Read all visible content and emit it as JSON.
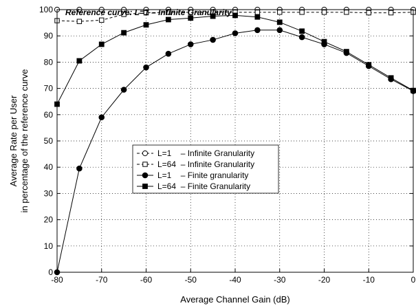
{
  "chart_data": {
    "type": "line",
    "title": "Reference curve: L=1 – Infinite Granularity",
    "xlabel": "Average Channel Gain (dB)",
    "ylabel_lines": [
      "Average Rate per User",
      "in percentage of the reference curve"
    ],
    "xlim": [
      -80,
      0
    ],
    "ylim": [
      0,
      100
    ],
    "xticks": [
      -80,
      -70,
      -60,
      -50,
      -40,
      -30,
      -20,
      -10,
      0
    ],
    "yticks": [
      0,
      10,
      20,
      30,
      40,
      50,
      60,
      70,
      80,
      90,
      100
    ],
    "grid": true,
    "legend_position": "center-left",
    "series": [
      {
        "name": "L=1    – Infinite Granularity",
        "marker": "circle-open",
        "line": "dashed",
        "x": [
          -80,
          -75,
          -70,
          -65,
          -60,
          -55,
          -50,
          -45,
          -40,
          -35,
          -30,
          -25,
          -20,
          -15,
          -10,
          -5,
          0
        ],
        "y": [
          100,
          100,
          100,
          100,
          100,
          100,
          100,
          100,
          100,
          100,
          100,
          100,
          100,
          100,
          100,
          100,
          100
        ]
      },
      {
        "name": "L=64  – Infinite Granularity",
        "marker": "square-open",
        "line": "dashed",
        "x": [
          -80,
          -75,
          -70,
          -65,
          -60,
          -55,
          -50,
          -45,
          -40,
          -35,
          -30,
          -25,
          -20,
          -15,
          -10,
          -5,
          0
        ],
        "y": [
          95.8,
          95.5,
          96,
          98.2,
          98.8,
          99,
          99,
          99,
          99,
          99,
          99,
          99,
          99,
          99,
          98.8,
          98.8,
          99
        ]
      },
      {
        "name": "L=1    – Finite granularity",
        "marker": "circle-filled",
        "line": "solid",
        "x": [
          -80,
          -75,
          -70,
          -65,
          -60,
          -55,
          -50,
          -45,
          -40,
          -35,
          -30,
          -25,
          -20,
          -15,
          -10,
          -5,
          0
        ],
        "y": [
          0,
          39.5,
          59,
          69.5,
          78,
          83.2,
          86.8,
          88.5,
          91,
          92.2,
          92.2,
          89.5,
          86.8,
          83.5,
          78.5,
          73.5,
          69
        ]
      },
      {
        "name": "L=64  – Finite Granularity",
        "marker": "square-filled",
        "line": "solid",
        "x": [
          -80,
          -75,
          -70,
          -65,
          -60,
          -55,
          -50,
          -45,
          -40,
          -35,
          -30,
          -25,
          -20,
          -15,
          -10,
          -5,
          0
        ],
        "y": [
          64,
          80.5,
          86.8,
          91.2,
          94.2,
          96.2,
          96.8,
          97.5,
          97.8,
          97.2,
          95.2,
          91.8,
          87.8,
          84,
          79,
          74,
          69.2
        ]
      }
    ]
  }
}
